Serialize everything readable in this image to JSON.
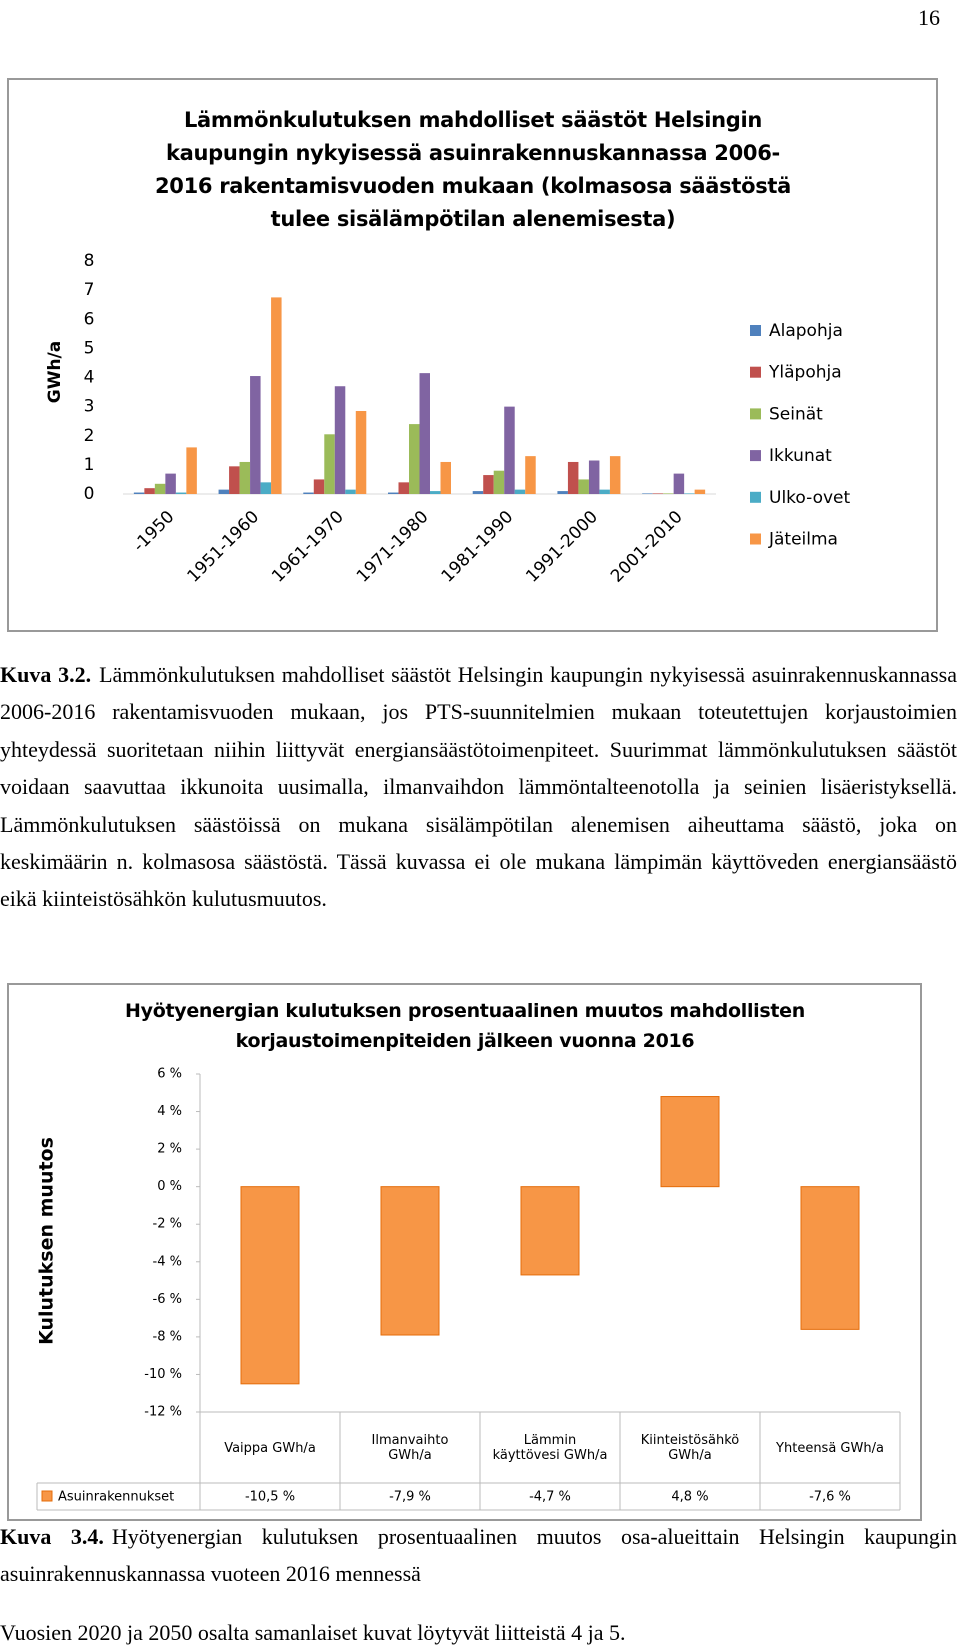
{
  "page_number": "16",
  "chart_data": [
    {
      "type": "bar",
      "title": "Lämmönkulutuksen mahdolliset säästöt Helsingin kaupungin nykyisessä asuinrakennuskannassa 2006-2016 rakentamisvuoden mukaan (kolmasosa säästöstä tulee sisälämpötilan alenemisesta)",
      "y_label": "GWh/a",
      "categories": [
        "-1950",
        "1951-1960",
        "1961-1970",
        "1971-1980",
        "1981-1990",
        "1991-2000",
        "2001-2010"
      ],
      "series": [
        {
          "name": "Alapohja",
          "color": "#4f81bd",
          "values": [
            0.05,
            0.15,
            0.05,
            0.05,
            0.1,
            0.1,
            0.02
          ]
        },
        {
          "name": "Yläpohja",
          "color": "#c0504d",
          "values": [
            0.2,
            0.95,
            0.5,
            0.4,
            0.65,
            1.1,
            0.02
          ]
        },
        {
          "name": "Seinät",
          "color": "#9bbb59",
          "values": [
            0.35,
            1.1,
            2.05,
            2.4,
            0.8,
            0.5,
            0.02
          ]
        },
        {
          "name": "Ikkunat",
          "color": "#8064a2",
          "values": [
            0.7,
            4.05,
            3.7,
            4.15,
            3.0,
            1.15,
            0.7
          ]
        },
        {
          "name": "Ulko-ovet",
          "color": "#4bacc6",
          "values": [
            0.05,
            0.4,
            0.15,
            0.1,
            0.15,
            0.15,
            0.02
          ]
        },
        {
          "name": "Jäteilma",
          "color": "#f79646",
          "values": [
            1.6,
            6.75,
            2.85,
            1.1,
            1.3,
            1.3,
            0.15
          ]
        }
      ],
      "ylim": [
        0,
        8
      ],
      "yticks": [
        0,
        1,
        2,
        3,
        4,
        5,
        6,
        7,
        8
      ],
      "legend": "right"
    },
    {
      "type": "bar",
      "title": "Hyötyenergian kulutuksen prosentuaalinen muutos mahdollisten korjaustoimenpiteiden jälkeen vuonna 2016",
      "y_label": "Kulutuksen muutos",
      "categories": [
        "Vaippa GWh/a",
        "Ilmanvaihto GWh/a",
        "Lämmin käyttövesi GWh/a",
        "Kiinteistösähkö GWh/a",
        "Yhteensä GWh/a"
      ],
      "series": [
        {
          "name": "Asuinrakennukset",
          "color": "#f79646",
          "values": [
            -10.5,
            -7.9,
            -4.7,
            4.8,
            -7.6
          ],
          "value_labels": [
            "-10,5 %",
            "-7,9 %",
            "-4,7 %",
            "4,8 %",
            "-7,6 %"
          ]
        }
      ],
      "ylim": [
        -12,
        6
      ],
      "yticks": [
        {
          "value": 6,
          "label": "6 %"
        },
        {
          "value": 4,
          "label": "4 %"
        },
        {
          "value": 2,
          "label": "2 %"
        },
        {
          "value": 0,
          "label": "0 %"
        },
        {
          "value": -2,
          "label": "-2 %"
        },
        {
          "value": -4,
          "label": "-4 %"
        },
        {
          "value": -6,
          "label": "-6 %"
        },
        {
          "value": -8,
          "label": "-8 %"
        },
        {
          "value": -10,
          "label": "-10 %"
        },
        {
          "value": -12,
          "label": "-12 %"
        }
      ],
      "data_table": true
    }
  ],
  "caption_1": {
    "label": "Kuva 3.2.",
    "text": "Lämmönkulutuksen mahdolliset säästöt Helsingin kaupungin nykyisessä asuinrakennuskannassa 2006-2016 rakentamisvuoden mukaan, jos PTS-suunnitelmien mukaan toteutettujen korjaustoimien yhteydessä suoritetaan niihin liittyvät energiansäästötoimenpiteet. Suurimmat lämmönkulutuksen säästöt voidaan saavuttaa ikkunoita uusimalla, ilmanvaihdon lämmöntalteenotolla ja seinien lisäeristyksellä. Lämmönkulutuksen säästöissä on mukana sisälämpötilan alenemisen aiheuttama säästö, joka on keskimäärin n. kolmasosa säästöstä. Tässä kuvassa ei ole mukana lämpimän käyttöveden energiansäästö eikä kiinteistösähkön kulutusmuutos."
  },
  "caption_2": {
    "label": "Kuva 3.4.",
    "text": "Hyötyenergian kulutuksen prosentuaalinen muutos osa-alueittain Helsingin kaupungin asuinrakennuskannassa vuoteen 2016 mennessä"
  },
  "footer_text": "Vuosien 2020 ja 2050 osalta samanlaiset kuvat löytyvät liitteistä 4 ja 5."
}
